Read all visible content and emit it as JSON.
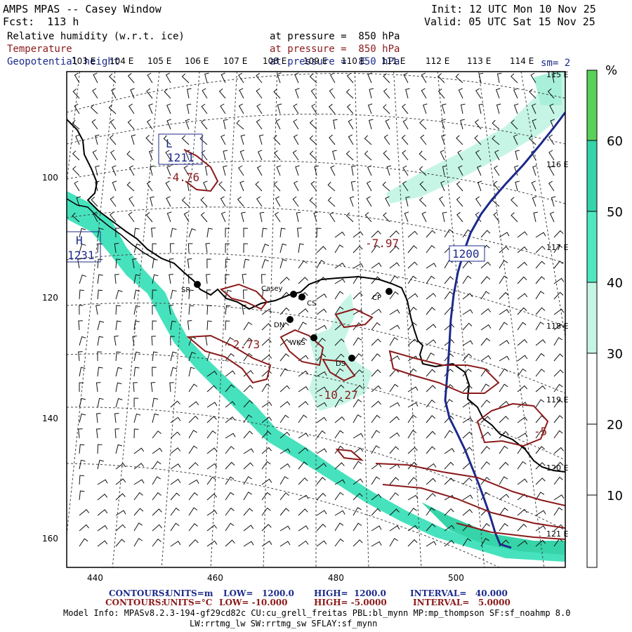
{
  "header": {
    "title": "AMPS MPAS -- Casey Window",
    "fcst": "Fcst:  113 h",
    "init": "Init: 12 UTC Mon 10 Nov 25",
    "valid": "Valid: 05 UTC Sat 15 Nov 25",
    "fields": [
      {
        "name": "Relative humidity (w.r.t. ice)",
        "level": "at pressure =  850 hPa",
        "color": "#000000"
      },
      {
        "name": "Temperature",
        "level": "at pressure =  850 hPa",
        "color": "#8b1a1a"
      },
      {
        "name": "Geopotential height",
        "level": "at pressure =  850 hPa",
        "color": "#1c2a8a"
      }
    ],
    "smoothing": "sm= 2"
  },
  "map": {
    "lon_labels_top": [
      "103 E",
      "104 E",
      "105 E",
      "106 E",
      "107 E",
      "108 E",
      "109 E",
      "110 E",
      "111 E",
      "112 E",
      "113 E",
      "114 E"
    ],
    "lon_labels_right": [
      "115 E",
      "116 E",
      "117 E",
      "118 E",
      "119 E",
      "120 E",
      "121 E"
    ],
    "x_ticks": [
      "440",
      "460",
      "480",
      "500"
    ],
    "y_ticks": [
      "100",
      "120",
      "140",
      "160"
    ],
    "stations": [
      {
        "id": "SR",
        "label": "SR"
      },
      {
        "id": "Casey",
        "label": "Casey"
      },
      {
        "id": "CS",
        "label": "CS"
      },
      {
        "id": "CP",
        "label": "CP"
      },
      {
        "id": "DN",
        "label": "DN"
      },
      {
        "id": "WKS",
        "label": "WKS"
      },
      {
        "id": "DS",
        "label": "DS"
      }
    ],
    "annotations": [
      {
        "id": "L",
        "text": "L"
      },
      {
        "id": "L-val",
        "text": "1211"
      },
      {
        "id": "T1",
        "text": "-4.76"
      },
      {
        "id": "H",
        "text": "H"
      },
      {
        "id": "H-val",
        "text": "1231"
      },
      {
        "id": "Z1200",
        "text": "1200"
      },
      {
        "id": "T2",
        "text": "-7.97"
      },
      {
        "id": "T3",
        "text": "-2.73"
      },
      {
        "id": "T4",
        "text": "-10.27"
      },
      {
        "id": "T5",
        "text": "-5"
      }
    ]
  },
  "colorbar": {
    "unit": "%",
    "labels": [
      "60",
      "50",
      "40",
      "30",
      "20",
      "10"
    ],
    "fill_colors": [
      "#ffffff",
      "#ffffff",
      "#ffffff",
      "#c6f5e6",
      "#4fe8c0",
      "#36d4a8",
      "#5ad25a"
    ]
  },
  "footer": {
    "contours_height": {
      "label": "CONTOURS:",
      "units": "UNITS=m",
      "low": "LOW=   1200.0",
      "high": "HIGH=  1200.0",
      "interval": "INTERVAL=   40.000"
    },
    "contours_temp": {
      "label": "CONTOURS:",
      "units": "UNITS=°C",
      "low": "LOW= -10.000",
      "high": "HIGH= -5.0000",
      "interval": "INTERVAL=   5.0000"
    },
    "model_info_1": "Model Info: MPASv8.2.3-194-gf29cd82c CU:cu_grell_freitas PBL:bl_mynn MP:mp_thompson SF:sf_noahmp 8.0",
    "model_info_2": "LW:rrtmg_lw SW:rrtmg_sw SFLAY:sf_mynn"
  }
}
